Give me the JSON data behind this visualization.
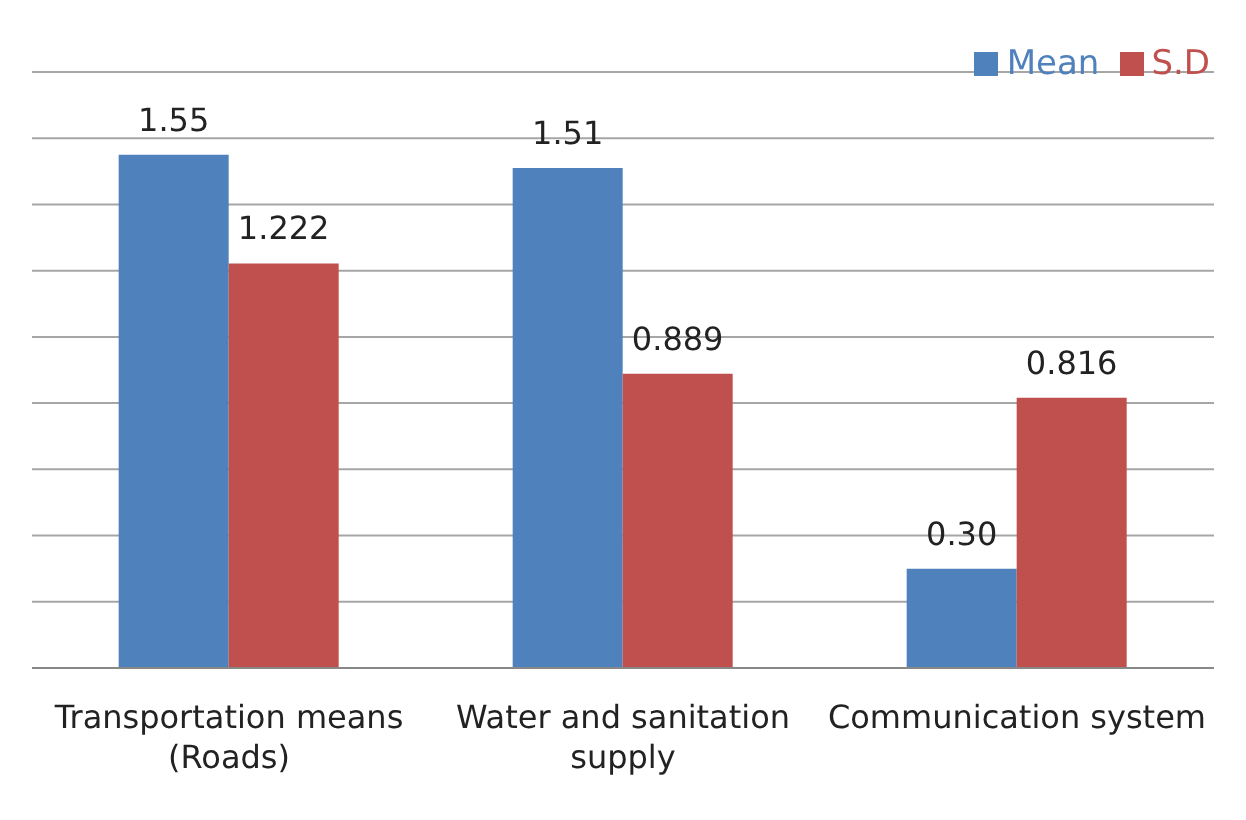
{
  "chart_data": {
    "type": "bar",
    "categories": [
      "Transportation means (Roads)",
      "Water and sanitation supply",
      "Communication system"
    ],
    "series": [
      {
        "name": "Mean",
        "color": "#4f81bd",
        "values": [
          1.55,
          1.51,
          0.3
        ],
        "value_labels": [
          "1.55",
          "1.51",
          "0.30"
        ]
      },
      {
        "name": "S.D",
        "color": "#c0504d",
        "values": [
          1.222,
          0.889,
          0.816
        ],
        "value_labels": [
          "1.222",
          "0.889",
          "0.816"
        ]
      }
    ],
    "grid": "y",
    "legend": "top right",
    "tick_labels": "x"
  }
}
